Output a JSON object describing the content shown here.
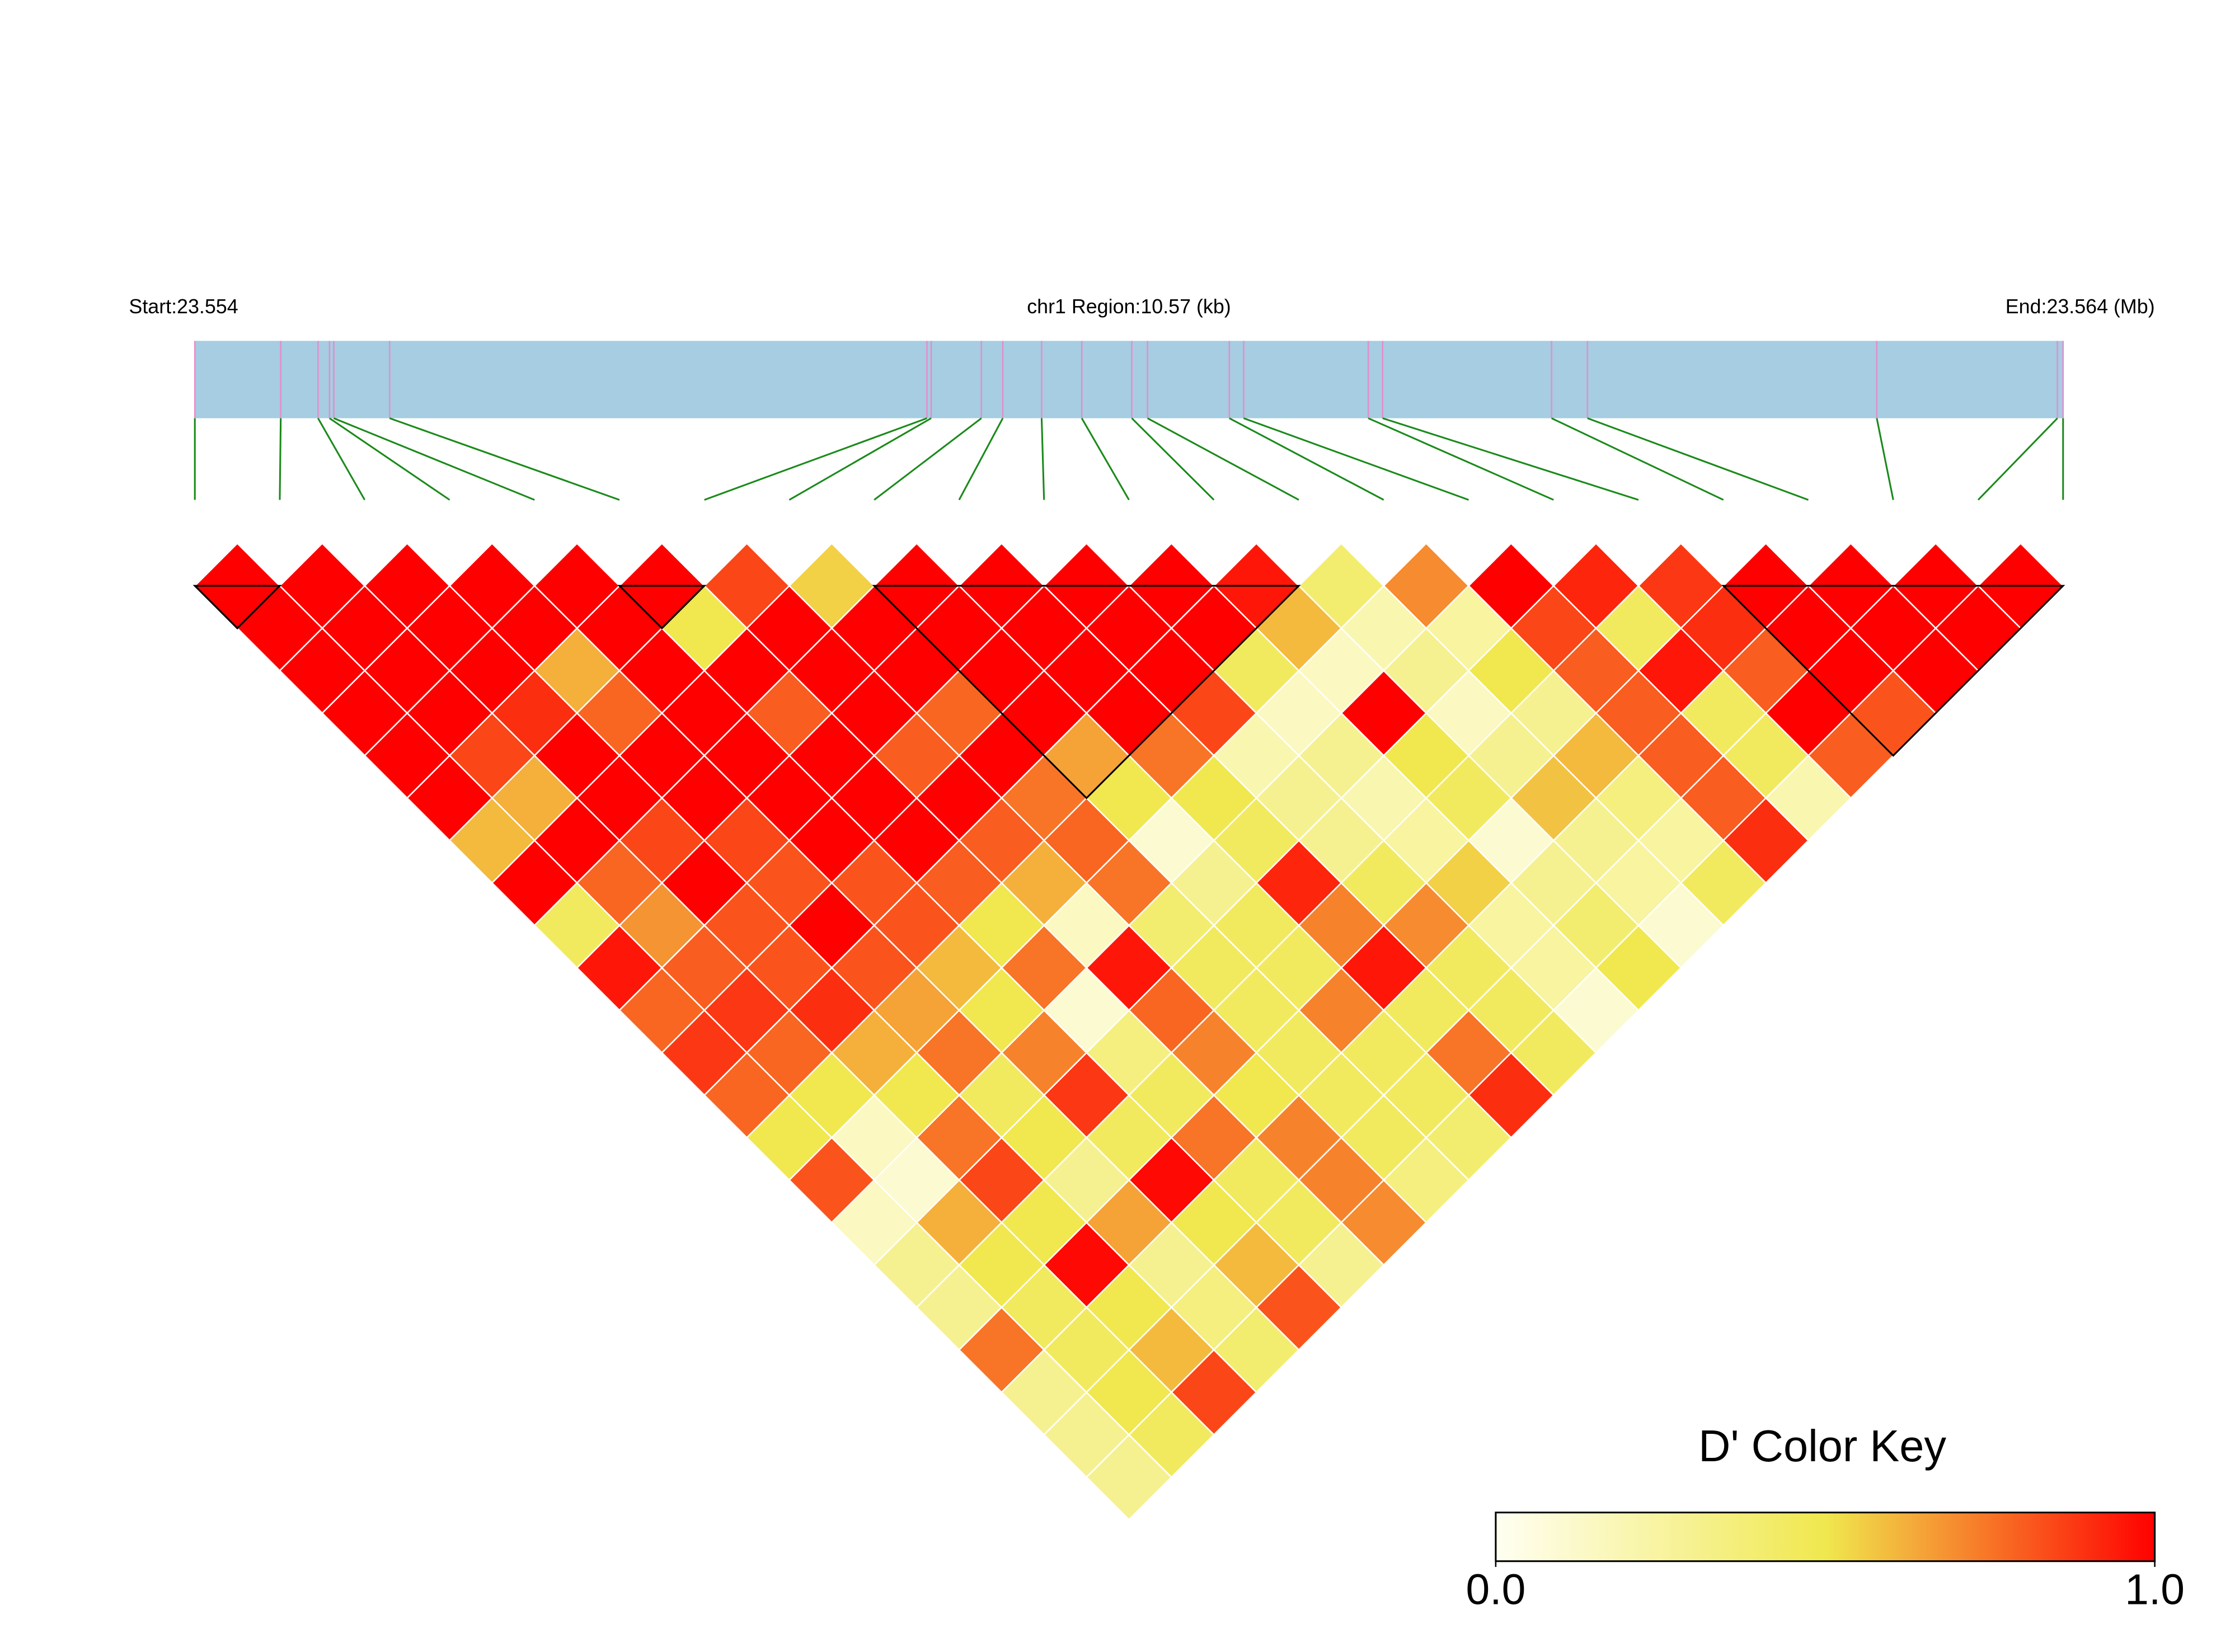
{
  "chart_data": {
    "type": "ld-heatmap",
    "start_label": "Start:23.554",
    "region_label": "chr1 Region:10.57 (kb)",
    "end_label": "End:23.564 (Mb)",
    "key_title": "D' Color Key",
    "xlim": [
      0,
      10.57
    ],
    "x": [
      0,
      0.486,
      0.697,
      0.762,
      0.786,
      1.102,
      4.142,
      4.166,
      4.45,
      4.571,
      4.791,
      5.018,
      5.301,
      5.39,
      5.853,
      5.934,
      6.639,
      6.72,
      7.676,
      7.879,
      9.516,
      10.538,
      10.57
    ],
    "values": [
      [
        1,
        1,
        1,
        1,
        1,
        1,
        0.85,
        0.55,
        1,
        1,
        1,
        1,
        0.95,
        0.4,
        0.7,
        1,
        0.92,
        0.88,
        1,
        1,
        1,
        1
      ],
      [
        1,
        1,
        1,
        1,
        1,
        0.5,
        1,
        1,
        1,
        1,
        1,
        1,
        0.6,
        0.2,
        0.25,
        0.85,
        0.45,
        0.9,
        1,
        1,
        1
      ],
      [
        1,
        1,
        1,
        0.62,
        1,
        1,
        1,
        1,
        1,
        1,
        1,
        0.45,
        0.15,
        0.3,
        0.5,
        0.8,
        0.95,
        0.8,
        1,
        1
      ],
      [
        1,
        1,
        0.9,
        0.78,
        1,
        0.8,
        1,
        0.78,
        1,
        1,
        0.85,
        0.15,
        1,
        0.15,
        0.3,
        0.8,
        0.45,
        1,
        0.82
      ],
      [
        1,
        0.85,
        1,
        1,
        1,
        1,
        0.8,
        1,
        0.65,
        0.75,
        0.2,
        0.3,
        0.5,
        0.3,
        0.6,
        0.8,
        0.45,
        0.8
      ],
      [
        1,
        0.62,
        1,
        1,
        1,
        1,
        1,
        0.75,
        0.5,
        0.5,
        0.3,
        0.2,
        0.45,
        0.58,
        0.35,
        0.8,
        0.2
      ],
      [
        0.6,
        1,
        0.85,
        0.85,
        1,
        1,
        0.8,
        0.78,
        0.1,
        0.45,
        0.3,
        0.25,
        0.1,
        0.3,
        0.25,
        0.9
      ],
      [
        1,
        0.78,
        1,
        0.82,
        0.82,
        0.8,
        0.62,
        0.75,
        0.3,
        0.92,
        0.45,
        0.55,
        0.3,
        0.25,
        0.45
      ],
      [
        0.45,
        0.68,
        0.82,
        1,
        0.82,
        0.5,
        0.15,
        0.4,
        0.45,
        0.72,
        0.7,
        0.25,
        0.4,
        0.1
      ],
      [
        0.95,
        0.8,
        0.82,
        0.82,
        0.6,
        0.75,
        0.95,
        0.45,
        0.45,
        0.95,
        0.45,
        0.25,
        0.5
      ],
      [
        0.78,
        0.88,
        0.9,
        0.65,
        0.5,
        0.1,
        0.78,
        0.45,
        0.72,
        0.45,
        0.45,
        0.1
      ],
      [
        0.88,
        0.78,
        0.62,
        0.75,
        0.72,
        0.35,
        0.72,
        0.45,
        0.45,
        0.75,
        0.45
      ],
      [
        0.78,
        0.5,
        0.5,
        0.45,
        0.88,
        0.45,
        0.5,
        0.45,
        0.45,
        0.9
      ],
      [
        0.5,
        0.15,
        0.75,
        0.5,
        0.45,
        0.75,
        0.72,
        0.45,
        0.4
      ],
      [
        0.82,
        0.1,
        0.85,
        0.3,
        0.98,
        0.45,
        0.72,
        0.35
      ],
      [
        0.15,
        0.62,
        0.5,
        0.65,
        0.5,
        0.45,
        0.7
      ],
      [
        0.3,
        0.5,
        0.98,
        0.3,
        0.6,
        0.3
      ],
      [
        0.3,
        0.45,
        0.5,
        0.35,
        0.82
      ],
      [
        0.75,
        0.45,
        0.6,
        0.4
      ],
      [
        0.3,
        0.5,
        0.85
      ],
      [
        0.3,
        0.45
      ],
      [
        0.3
      ]
    ],
    "blocks": [
      [
        0,
        1
      ],
      [
        5,
        6
      ],
      [
        8,
        13
      ],
      [
        18,
        22
      ]
    ],
    "colors": [
      "#fffff2",
      "#f0e84e",
      "#ff0000"
    ],
    "bar_color": "#a6cde1",
    "clim": [
      0,
      1
    ],
    "cticks": [
      {
        "value": 0,
        "label": "0.0"
      },
      {
        "value": 1,
        "label": "1.0"
      }
    ]
  }
}
